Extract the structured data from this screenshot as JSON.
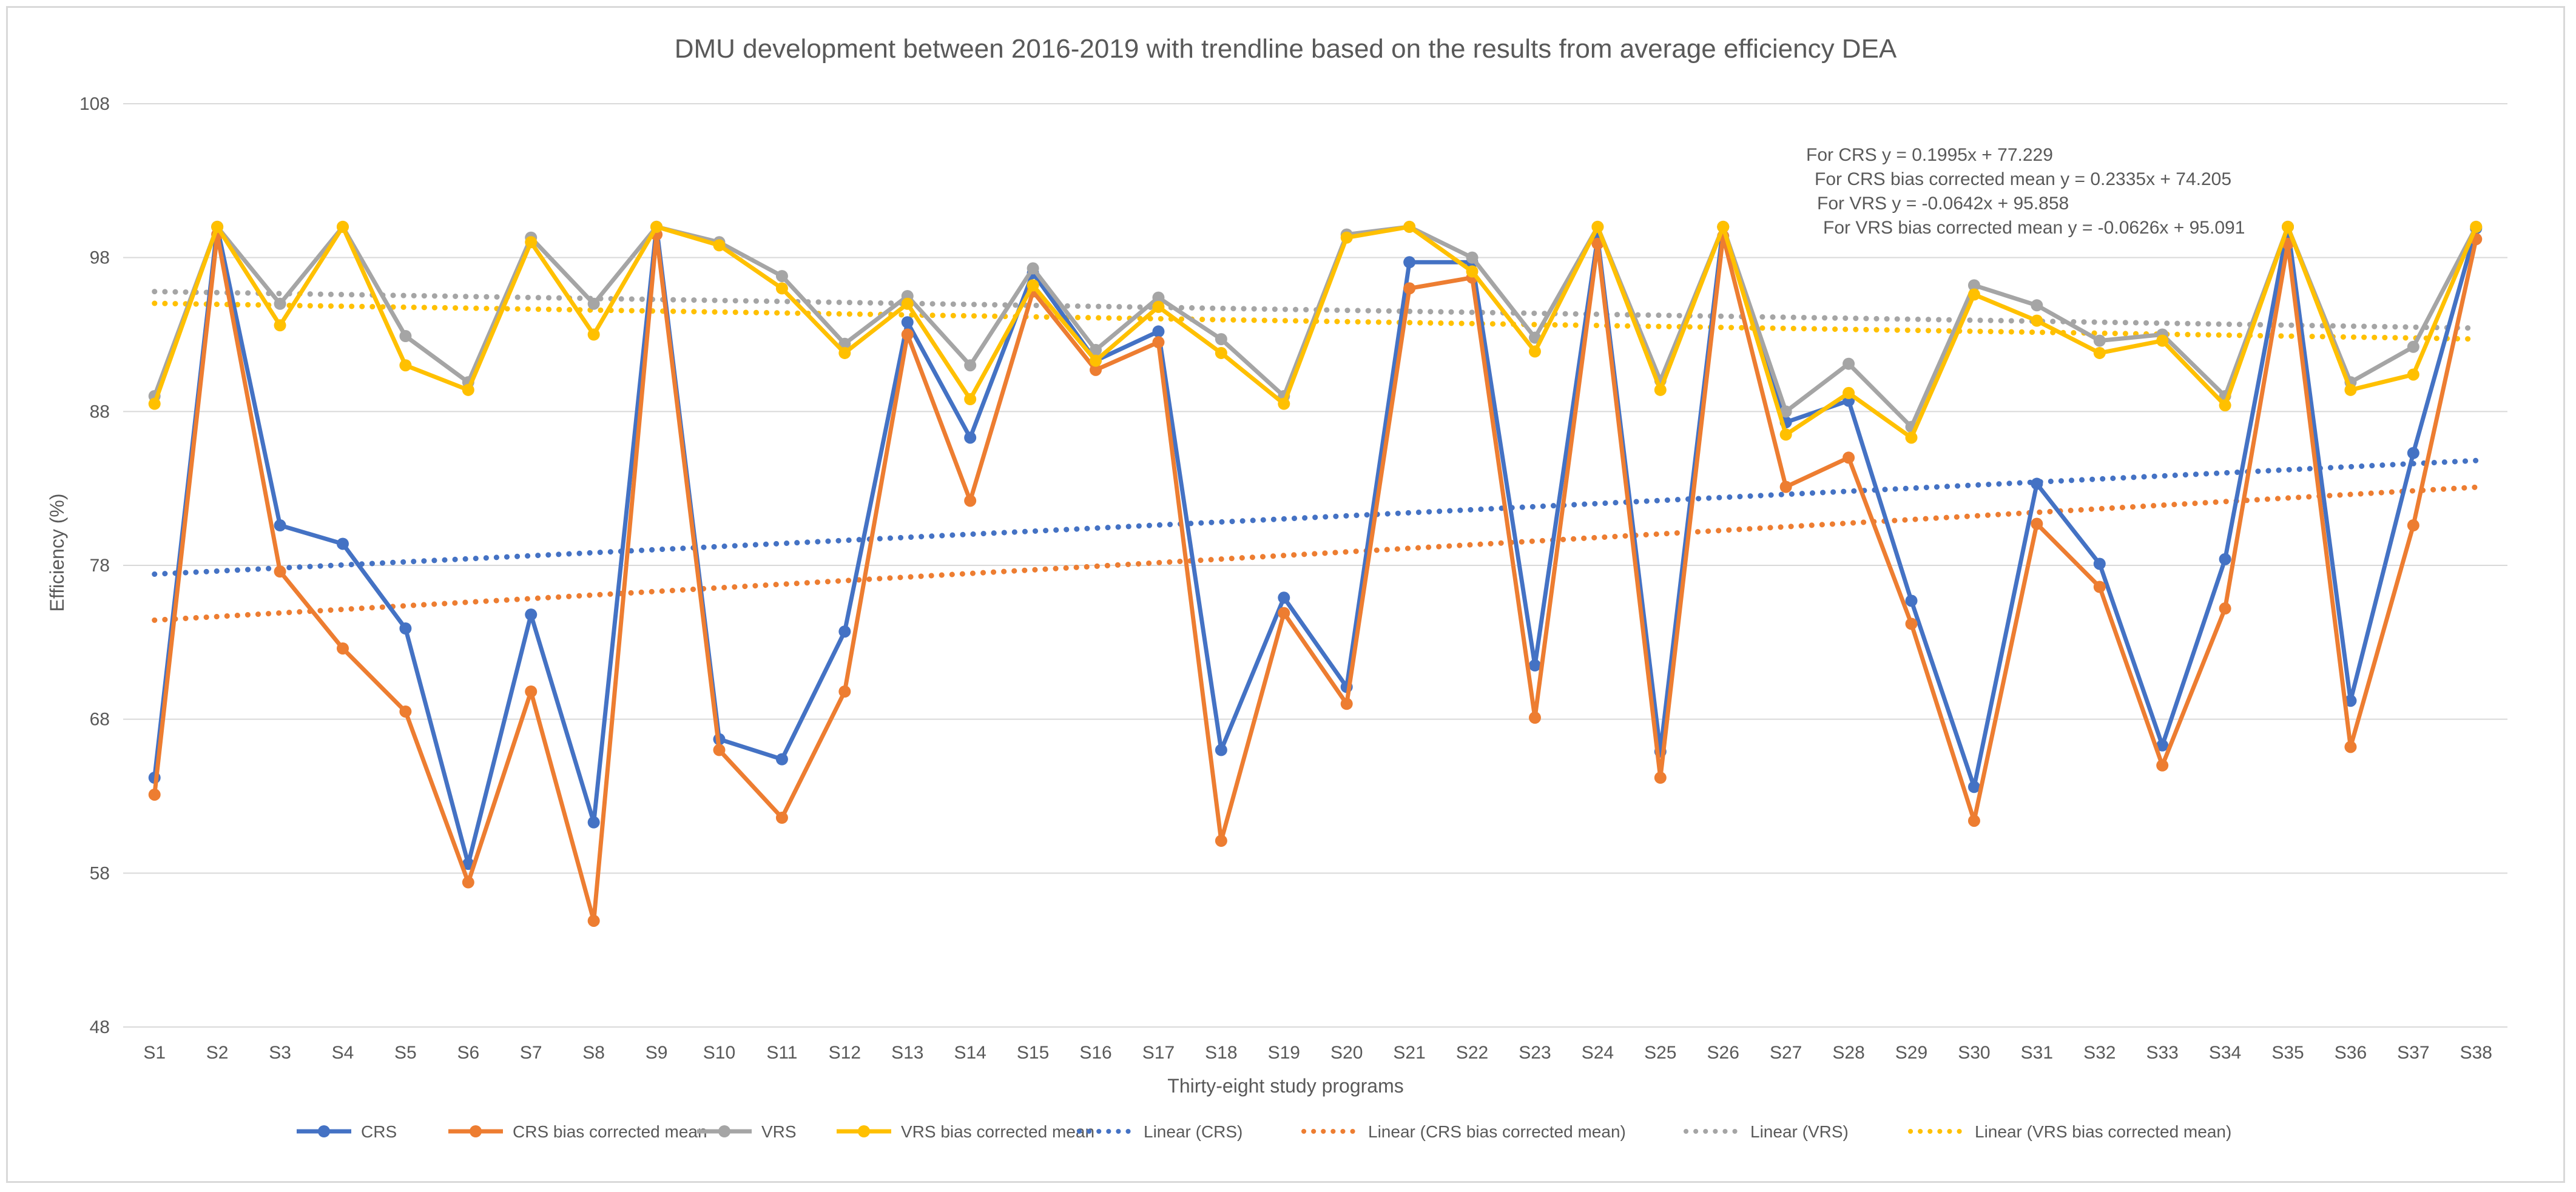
{
  "chart_data": {
    "type": "line",
    "title": "DMU development between 2016-2019 with trendline based on the results from average efficiency DEA",
    "xlabel": "Thirty-eight study programs",
    "ylabel": "Efficiency (%)",
    "ylim": [
      48,
      108
    ],
    "yticks": [
      48,
      58,
      68,
      78,
      88,
      98,
      108
    ],
    "grid": true,
    "legend_position": "bottom",
    "categories": [
      "S1",
      "S2",
      "S3",
      "S4",
      "S5",
      "S6",
      "S7",
      "S8",
      "S9",
      "S10",
      "S11",
      "S12",
      "S13",
      "S14",
      "S15",
      "S16",
      "S17",
      "S18",
      "S19",
      "S20",
      "S21",
      "S22",
      "S23",
      "S24",
      "S25",
      "S26",
      "S27",
      "S28",
      "S29",
      "S30",
      "S31",
      "S32",
      "S33",
      "S34",
      "S35",
      "S36",
      "S37",
      "S38"
    ],
    "series": [
      {
        "name": "CRS",
        "color": "#4472C4",
        "values": [
          64.2,
          100,
          80.6,
          79.4,
          73.9,
          58.6,
          74.8,
          61.3,
          100,
          66.7,
          65.4,
          73.7,
          93.8,
          86.3,
          97.0,
          91.3,
          93.2,
          66.0,
          75.9,
          70.1,
          97.7,
          97.7,
          71.5,
          99.3,
          65.9,
          100,
          87.3,
          88.7,
          75.7,
          63.6,
          83.3,
          78.1,
          66.3,
          78.4,
          100,
          69.2,
          85.3,
          99.9
        ]
      },
      {
        "name": "CRS bias corrected mean",
        "color": "#ED7D31",
        "values": [
          63.1,
          99.5,
          77.6,
          72.6,
          68.5,
          57.4,
          69.8,
          54.9,
          99.5,
          66.0,
          61.6,
          69.8,
          93.0,
          82.2,
          95.8,
          90.7,
          92.5,
          60.1,
          74.9,
          69.0,
          96.0,
          96.7,
          68.1,
          98.9,
          64.2,
          99.4,
          83.1,
          85.0,
          74.2,
          61.4,
          80.7,
          76.6,
          65.0,
          75.2,
          98.9,
          66.2,
          80.6,
          99.2
        ]
      },
      {
        "name": "VRS",
        "color": "#A5A5A5",
        "values": [
          89.0,
          100,
          95.0,
          100,
          92.9,
          89.9,
          99.3,
          95.0,
          100,
          99.0,
          96.8,
          92.4,
          95.5,
          91.0,
          97.3,
          92.0,
          95.4,
          92.7,
          89.0,
          99.5,
          100,
          98.0,
          92.8,
          100,
          90.0,
          100,
          88.0,
          91.1,
          87.0,
          96.2,
          94.9,
          92.6,
          93.0,
          89.0,
          100,
          89.9,
          92.2,
          100
        ]
      },
      {
        "name": "VRS bias corrected mean",
        "color": "#FFC000",
        "values": [
          88.5,
          100,
          93.6,
          100,
          91.0,
          89.4,
          99.0,
          93.0,
          100,
          98.8,
          96.0,
          91.8,
          95.0,
          88.8,
          96.2,
          91.3,
          94.8,
          91.8,
          88.5,
          99.3,
          100,
          97.1,
          91.9,
          100,
          89.4,
          100,
          86.5,
          89.2,
          86.3,
          95.6,
          93.9,
          91.8,
          92.6,
          88.4,
          100,
          89.4,
          90.4,
          100
        ]
      }
    ],
    "trendlines": [
      {
        "name": "Linear (CRS)",
        "color": "#4472C4",
        "slope": 0.1995,
        "intercept": 77.229
      },
      {
        "name": "Linear (CRS bias corrected mean)",
        "color": "#ED7D31",
        "slope": 0.2335,
        "intercept": 74.205
      },
      {
        "name": "Linear (VRS)",
        "color": "#A5A5A5",
        "slope": -0.0642,
        "intercept": 95.858
      },
      {
        "name": "Linear (VRS bias corrected mean)",
        "color": "#FFC000",
        "slope": -0.0626,
        "intercept": 95.091
      }
    ],
    "annotations": [
      "For CRS y = 0.1995x + 77.229",
      "For CRS bias corrected mean y = 0.2335x + 74.205",
      "For VRS y = -0.0642x + 95.858",
      "For VRS bias corrected mean y = -0.0626x + 95.091"
    ]
  }
}
